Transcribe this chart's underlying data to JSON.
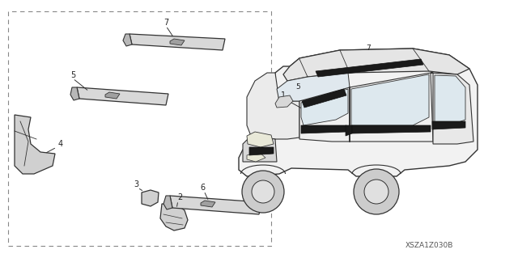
{
  "bg_color": "#ffffff",
  "line_color": "#333333",
  "diagram_code": "XSZA1Z030B",
  "figsize": [
    6.4,
    3.19
  ],
  "dpi": 100
}
